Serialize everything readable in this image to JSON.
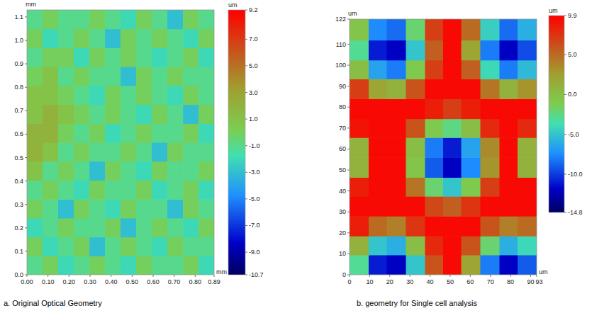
{
  "chart_data": [
    {
      "type": "heatmap",
      "title": "a. Original Optical Geometry",
      "x_label": "mm",
      "y_label": "mm",
      "colorbar_label": "um",
      "xlim": [
        0,
        0.89
      ],
      "ylim": [
        0,
        1.13
      ],
      "xticks": [
        {
          "value": 0,
          "label": "0.00"
        },
        {
          "value": 0.1,
          "label": "0.10"
        },
        {
          "value": 0.2,
          "label": "0.20"
        },
        {
          "value": 0.3,
          "label": "0.30"
        },
        {
          "value": 0.4,
          "label": "0.40"
        },
        {
          "value": 0.5,
          "label": "0.50"
        },
        {
          "value": 0.6,
          "label": "0.60"
        },
        {
          "value": 0.7,
          "label": "0.70"
        },
        {
          "value": 0.8,
          "label": "0.80"
        },
        0.89
      ],
      "yticks": [
        {
          "value": 0,
          "label": "0.0"
        },
        0.1,
        0.2,
        0.3,
        0.4,
        0.5,
        0.6,
        0.7,
        0.8,
        0.9,
        {
          "value": 1,
          "label": "1.0"
        },
        1.1
      ],
      "colorbar_range": [
        -10.7,
        9.2
      ],
      "colorbar_ticks": [
        9.2,
        {
          "value": 7,
          "label": "7.0"
        },
        {
          "value": 5,
          "label": "5.0"
        },
        {
          "value": 3,
          "label": "3.0"
        },
        {
          "value": 1,
          "label": "1.0"
        },
        {
          "value": -1,
          "label": "-1.0"
        },
        {
          "value": -3,
          "label": "-3.0"
        },
        {
          "value": -5,
          "label": "-5.0"
        },
        {
          "value": -7,
          "label": "-7.0"
        },
        {
          "value": -9,
          "label": "-9.0"
        },
        -10.7
      ],
      "x": [
        0.037,
        0.111,
        0.185,
        0.26,
        0.334,
        0.408,
        0.482,
        0.556,
        0.63,
        0.705,
        0.779,
        0.853
      ],
      "y": [
        0.04,
        0.121,
        0.202,
        0.282,
        0.363,
        0.444,
        0.525,
        0.605,
        0.686,
        0.767,
        0.848,
        0.928,
        1.009,
        1.09
      ],
      "cells": [
        [
          -1,
          0,
          -2,
          -1,
          0,
          -1,
          -2,
          0,
          -1,
          -1,
          0,
          -2
        ],
        [
          0,
          -2,
          -1,
          0,
          -3,
          -1,
          0,
          -1,
          -2,
          0,
          -1,
          -1
        ],
        [
          -2,
          -1,
          0,
          -1,
          -1,
          0,
          -3,
          -1,
          0,
          -1,
          -2,
          0
        ],
        [
          0,
          -1,
          -3,
          0,
          -1,
          -2,
          0,
          -1,
          -1,
          -3,
          0,
          -1
        ],
        [
          -1,
          0,
          -1,
          -2,
          0,
          -1,
          -1,
          0,
          -2,
          -1,
          0,
          -2
        ],
        [
          1,
          -1,
          0,
          -1,
          -3,
          0,
          -1,
          -2,
          0,
          -1,
          -1,
          0
        ],
        [
          2,
          1,
          -1,
          0,
          -1,
          -1,
          0,
          -1,
          -3,
          0,
          -1,
          -1
        ],
        [
          2,
          2,
          0,
          -1,
          0,
          -2,
          -1,
          0,
          -1,
          -1,
          0,
          -2
        ],
        [
          1,
          2,
          1,
          0,
          -1,
          0,
          -1,
          -2,
          0,
          -1,
          -3,
          0
        ],
        [
          1,
          1,
          0,
          -1,
          -2,
          0,
          -1,
          0,
          -1,
          -2,
          0,
          -1
        ],
        [
          0,
          1,
          -1,
          0,
          -1,
          -1,
          -3,
          0,
          -1,
          0,
          -1,
          -1
        ],
        [
          -1,
          0,
          0,
          -2,
          0,
          -1,
          0,
          -1,
          -2,
          -1,
          0,
          -2
        ],
        [
          0,
          -2,
          -1,
          0,
          -1,
          -3,
          0,
          -1,
          0,
          -1,
          -2,
          0
        ],
        [
          -1,
          0,
          -1,
          -1,
          0,
          -1,
          -2,
          0,
          -1,
          -3,
          0,
          -1
        ]
      ]
    },
    {
      "type": "heatmap",
      "title": "b. geometry for Single cell analysis",
      "x_label": "um",
      "y_label": "um",
      "colorbar_label": "um",
      "xlim": [
        0,
        93
      ],
      "ylim": [
        0,
        122
      ],
      "xticks": [
        0,
        10,
        20,
        30,
        40,
        50,
        60,
        70,
        80,
        90,
        93
      ],
      "yticks": [
        0,
        10,
        20,
        30,
        40,
        50,
        60,
        70,
        80,
        90,
        100,
        110,
        122
      ],
      "colorbar_range": [
        -14.8,
        9.9
      ],
      "colorbar_ticks": [
        9.9,
        {
          "value": 5,
          "label": "5.0"
        },
        {
          "value": 0,
          "label": "0.0"
        },
        {
          "value": -5,
          "label": "-5.0"
        },
        {
          "value": -10,
          "label": "-10.0"
        },
        -14.8
      ],
      "x": [
        5,
        14,
        23,
        33,
        42,
        51,
        60,
        70,
        79,
        88
      ],
      "y": [
        5,
        14,
        23,
        33,
        42,
        51,
        61,
        70,
        79,
        89,
        98,
        107,
        117
      ],
      "cells": [
        [
          -3,
          -11,
          -12,
          -5,
          6,
          9.5,
          2,
          -8,
          -12,
          -9
        ],
        [
          1,
          -5,
          -6,
          0,
          8,
          9.5,
          6,
          -2,
          -6,
          -4
        ],
        [
          8.5,
          5,
          4,
          7.5,
          9.5,
          9.5,
          9.5,
          6,
          4,
          5
        ],
        [
          9.5,
          9.5,
          9.5,
          9.5,
          6.5,
          5.5,
          7.5,
          9.5,
          9.5,
          9.5
        ],
        [
          8.5,
          9.5,
          9.5,
          4.5,
          -2,
          -5,
          -1,
          7,
          9.5,
          9.5
        ],
        [
          1,
          9.5,
          9.5,
          -0.5,
          -9,
          -12,
          -7.5,
          3,
          9.5,
          1
        ],
        [
          1,
          9.5,
          9.5,
          0,
          -8,
          -11,
          -6.5,
          3.5,
          9.5,
          1
        ],
        [
          9,
          9.5,
          9.5,
          6,
          -1,
          -2.5,
          0,
          8,
          9.5,
          8
        ],
        [
          9.5,
          9.5,
          9.5,
          9.5,
          8.5,
          7,
          8.5,
          9.5,
          9.5,
          9.5
        ],
        [
          7,
          2,
          1,
          6,
          9.5,
          9.5,
          9.5,
          4.5,
          1,
          3
        ],
        [
          0,
          -6.5,
          -8,
          -1,
          7,
          9.5,
          5.5,
          -4,
          -8,
          -5.5
        ],
        [
          -3,
          -11,
          -12,
          -5,
          5.5,
          9.5,
          2,
          -8,
          -12,
          -9.5
        ],
        [
          -0.5,
          -7.5,
          -8.5,
          -2,
          7,
          9.5,
          5,
          -4.5,
          -8.5,
          -6
        ]
      ]
    }
  ]
}
